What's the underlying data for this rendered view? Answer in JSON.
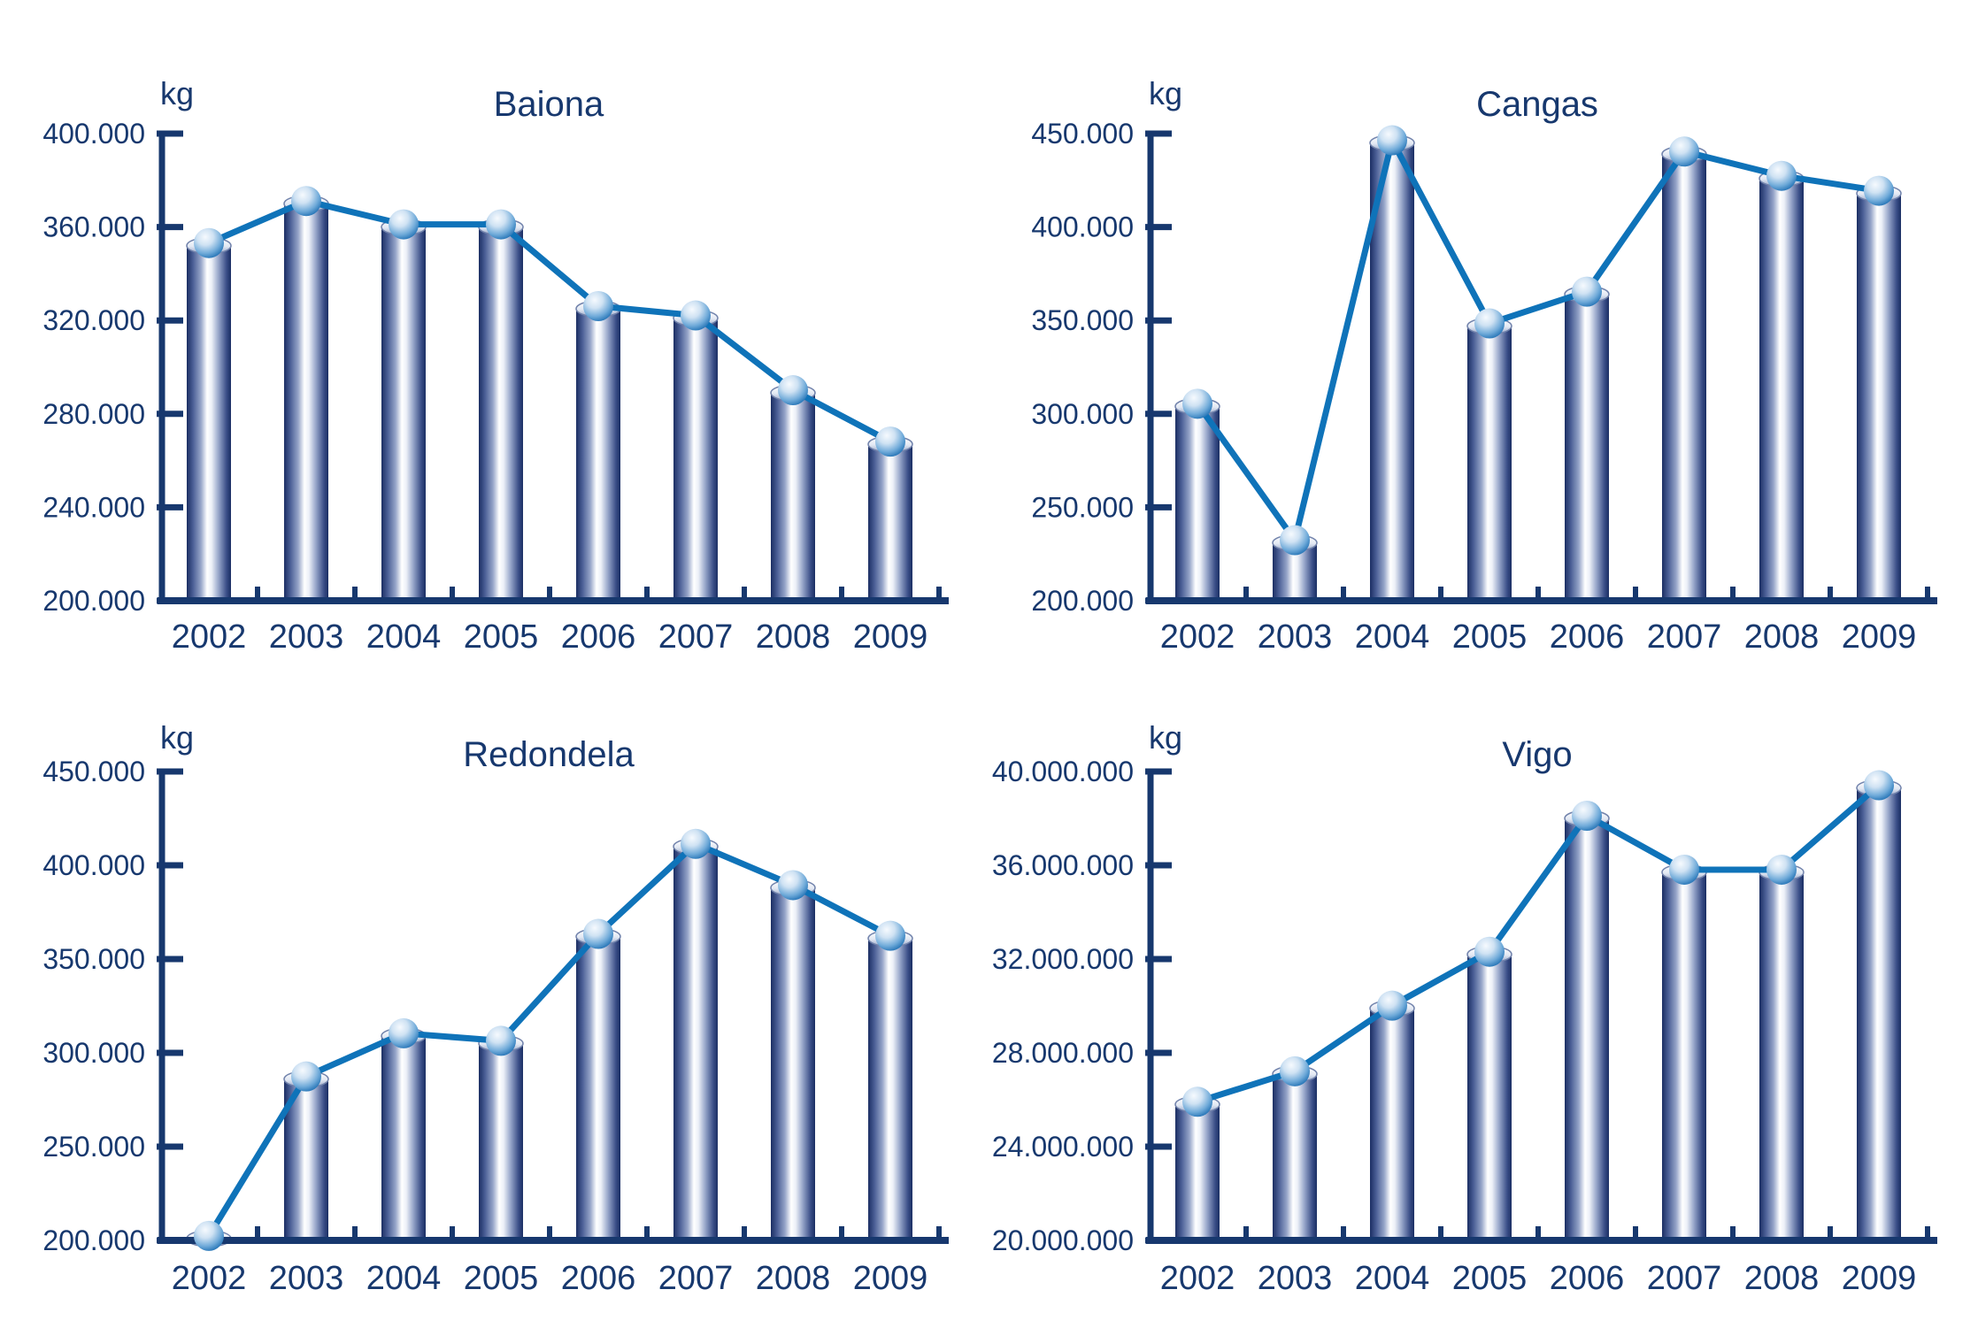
{
  "colors": {
    "background": "#FFFFFF",
    "text_navy": "#17386E",
    "axis_navy": "#17386E",
    "line_blue": "#0F73B9",
    "bar_dark": "#1B2E63",
    "bar_mid": "#96A5C9",
    "bar_highlight": "#FFFFFF",
    "cap_top": "#FFFFFF",
    "cap_bottom": "#97A6C8",
    "cap_rim": "#7283AC",
    "ball_light": "#F6FAFE",
    "ball_mid": "#6FAAD9",
    "ball_dark": "#1568AE"
  },
  "chart_data": [
    {
      "type": "bar",
      "subtype": "cylinder-bars-with-line-and-sphere-markers",
      "title": "Baiona",
      "unit": "kg",
      "xlabel": "",
      "ylabel": "kg",
      "grid": false,
      "legend": false,
      "categories": [
        "2002",
        "2003",
        "2004",
        "2005",
        "2006",
        "2007",
        "2008",
        "2009"
      ],
      "values": [
        352000,
        370000,
        360000,
        360000,
        325000,
        321000,
        289000,
        267000
      ],
      "ylim": [
        200000,
        400000
      ],
      "ytick_step": 40000,
      "ytick_labels": [
        "200.000",
        "240.000",
        "280.000",
        "320.000",
        "360.000",
        "400.000"
      ]
    },
    {
      "type": "bar",
      "subtype": "cylinder-bars-with-line-and-sphere-markers",
      "title": "Cangas",
      "unit": "kg",
      "xlabel": "",
      "ylabel": "kg",
      "grid": false,
      "legend": false,
      "categories": [
        "2002",
        "2003",
        "2004",
        "2005",
        "2006",
        "2007",
        "2008",
        "2009"
      ],
      "values": [
        304000,
        231000,
        445000,
        347000,
        364000,
        439000,
        426000,
        418000
      ],
      "ylim": [
        200000,
        450000
      ],
      "ytick_step": 50000,
      "ytick_labels": [
        "200.000",
        "250.000",
        "300.000",
        "350.000",
        "400.000",
        "450.000"
      ]
    },
    {
      "type": "bar",
      "subtype": "cylinder-bars-with-line-and-sphere-markers",
      "title": "Redondela",
      "unit": "kg",
      "xlabel": "",
      "ylabel": "kg",
      "grid": false,
      "legend": false,
      "categories": [
        "2002",
        "2003",
        "2004",
        "2005",
        "2006",
        "2007",
        "2008",
        "2009"
      ],
      "values": [
        201000,
        286000,
        309000,
        305000,
        362000,
        410000,
        388000,
        361000
      ],
      "ylim": [
        200000,
        450000
      ],
      "ytick_step": 50000,
      "ytick_labels": [
        "200.000",
        "250.000",
        "300.000",
        "350.000",
        "400.000",
        "450.000"
      ]
    },
    {
      "type": "bar",
      "subtype": "cylinder-bars-with-line-and-sphere-markers",
      "title": "Vigo",
      "unit": "kg",
      "xlabel": "",
      "ylabel": "kg",
      "grid": false,
      "legend": false,
      "categories": [
        "2002",
        "2003",
        "2004",
        "2005",
        "2006",
        "2007",
        "2008",
        "2009"
      ],
      "values": [
        25800000,
        27100000,
        29900000,
        32200000,
        38000000,
        35700000,
        35700000,
        39300000
      ],
      "ylim": [
        20000000,
        40000000
      ],
      "ytick_step": 4000000,
      "ytick_labels": [
        "20.000.000",
        "24.000.000",
        "28.000.000",
        "32.000.000",
        "36.000.000",
        "40.000.000"
      ]
    }
  ]
}
